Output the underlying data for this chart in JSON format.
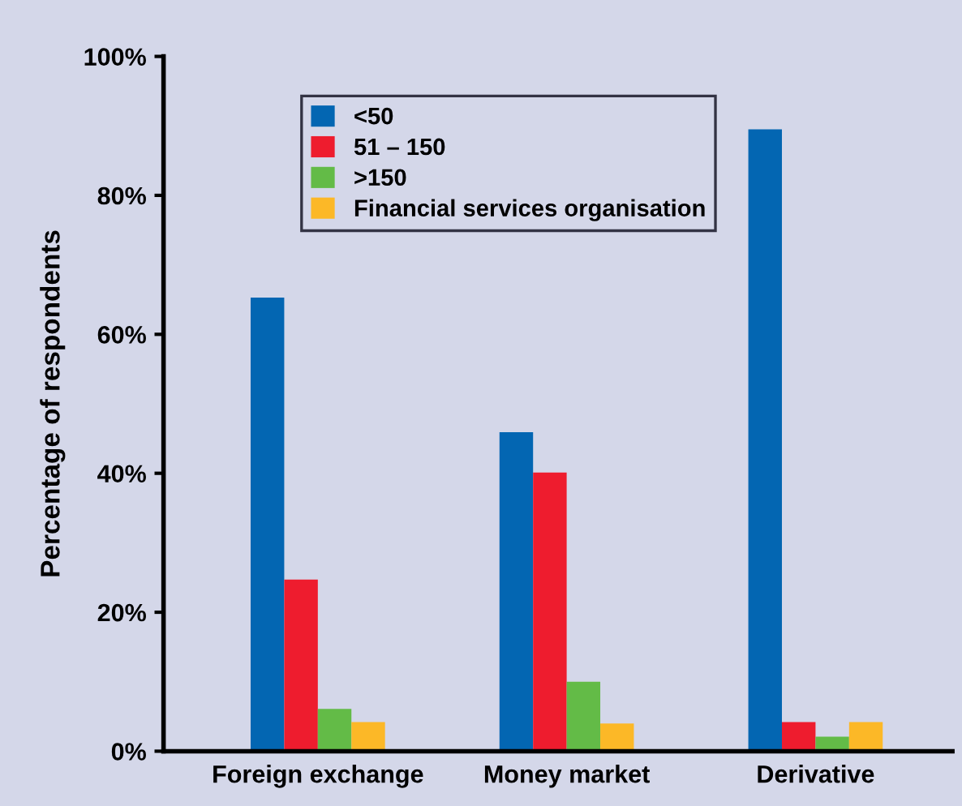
{
  "chart_data": {
    "type": "bar",
    "ylabel": "Percentage of respondents",
    "categories": [
      "Foreign exchange",
      "Money market",
      "Derivative"
    ],
    "series": [
      {
        "name": "<50",
        "color": "#0366b2",
        "values": [
          65.3,
          45.9,
          89.5
        ]
      },
      {
        "name": "51 – 150",
        "color": "#ee1c2e",
        "values": [
          24.7,
          40.1,
          4.2
        ]
      },
      {
        "name": ">150",
        "color": "#63bb47",
        "values": [
          6.1,
          10.0,
          2.1
        ]
      },
      {
        "name": "Financial services organisation",
        "color": "#fcb827",
        "values": [
          4.2,
          4.0,
          4.2
        ]
      }
    ],
    "ylim": [
      0,
      100
    ],
    "yticks": [
      {
        "value": 0,
        "label": "0%"
      },
      {
        "value": 20,
        "label": "20%"
      },
      {
        "value": 40,
        "label": "40%"
      },
      {
        "value": 60,
        "label": "60%"
      },
      {
        "value": 80,
        "label": "80%"
      },
      {
        "value": 100,
        "label": "100%"
      }
    ],
    "grid": false,
    "legend": "top left"
  }
}
